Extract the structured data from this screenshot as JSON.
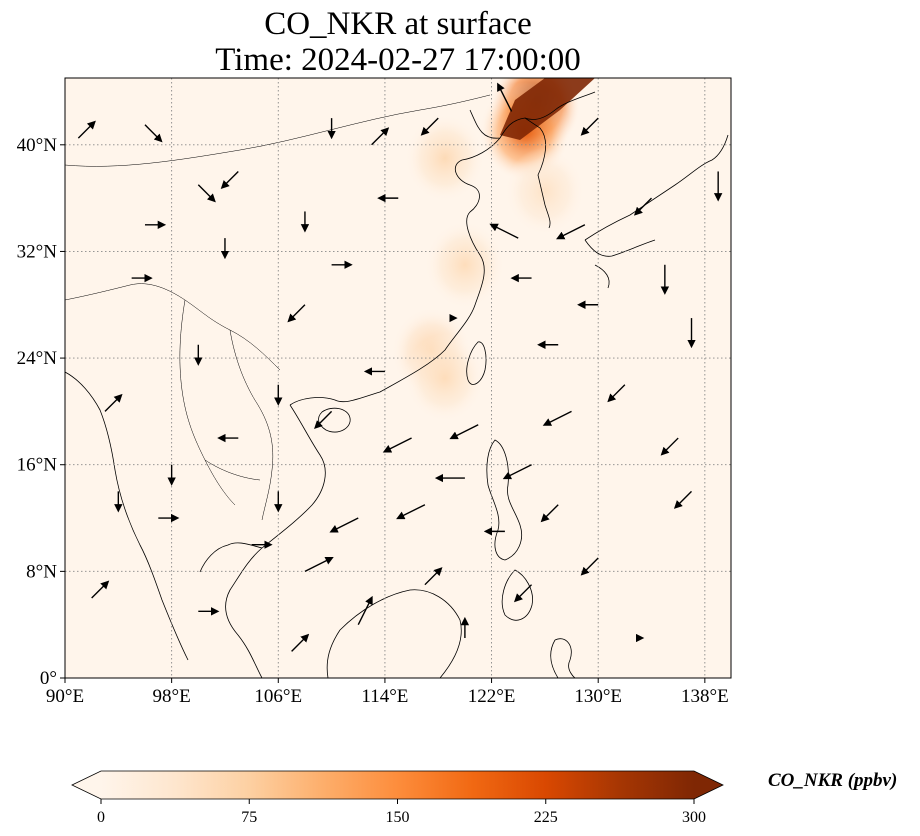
{
  "title_line1": "CO_NKR at surface",
  "title_line2": "Time: 2024-02-27 17:00:00",
  "colorbar": {
    "label": "CO_NKR (ppbv)",
    "ticks": [
      "0",
      "75",
      "150",
      "225",
      "300"
    ],
    "min": 0,
    "max": 300,
    "extend": "both",
    "colormap": [
      "#fff5eb",
      "#fee6ce",
      "#fdd0a2",
      "#fdae6b",
      "#fd8d3c",
      "#f16913",
      "#d94801",
      "#a63603",
      "#7f2704"
    ]
  },
  "map": {
    "lon_range": [
      90,
      140
    ],
    "lat_range": [
      0,
      45
    ],
    "lon_ticks": [
      "90°E",
      "98°E",
      "106°E",
      "114°E",
      "122°E",
      "130°E",
      "138°E"
    ],
    "lat_ticks": [
      "0°",
      "8°N",
      "16°N",
      "24°N",
      "32°N",
      "40°N"
    ],
    "background_color": "#fff5eb",
    "gridlines": "dotted",
    "plumes": [
      {
        "name": "northeast-china-hotspot",
        "lon": 125.3,
        "lat": 43.0,
        "value": 300
      },
      {
        "name": "liaodong",
        "lon": 124.5,
        "lat": 41.0,
        "value": 210
      },
      {
        "name": "north-china-plain",
        "lon": 118.5,
        "lat": 39.0,
        "value": 60
      },
      {
        "name": "korea-yellow-sea",
        "lon": 126.0,
        "lat": 36.5,
        "value": 45
      },
      {
        "name": "yangtze-delta",
        "lon": 120.0,
        "lat": 31.0,
        "value": 55
      },
      {
        "name": "southeast-coast",
        "lon": 117.5,
        "lat": 24.5,
        "value": 70
      },
      {
        "name": "taiwan-strait-outflow",
        "lon": 118.5,
        "lat": 22.5,
        "value": 55
      }
    ],
    "wind_vectors": [
      {
        "lon": 91,
        "lat": 40.5,
        "u": 1,
        "v": 1
      },
      {
        "lon": 96,
        "lat": 41.5,
        "u": 1,
        "v": -1
      },
      {
        "lon": 103,
        "lat": 38,
        "u": -1,
        "v": -1
      },
      {
        "lon": 110,
        "lat": 42,
        "u": 0,
        "v": -1
      },
      {
        "lon": 115,
        "lat": 36,
        "u": -1,
        "v": 0
      },
      {
        "lon": 102,
        "lat": 33,
        "u": 0,
        "v": -1
      },
      {
        "lon": 95,
        "lat": 30,
        "u": 1,
        "v": 0
      },
      {
        "lon": 108,
        "lat": 28,
        "u": -1,
        "v": -1
      },
      {
        "lon": 100,
        "lat": 25,
        "u": 0,
        "v": -1
      },
      {
        "lon": 93,
        "lat": 20,
        "u": 1,
        "v": 1
      },
      {
        "lon": 103,
        "lat": 18,
        "u": -1,
        "v": 0
      },
      {
        "lon": 97,
        "lat": 12,
        "u": 1,
        "v": 0
      },
      {
        "lon": 104,
        "lat": 10,
        "u": 1,
        "v": 0
      },
      {
        "lon": 108,
        "lat": 8,
        "u": 2,
        "v": 1
      },
      {
        "lon": 112,
        "lat": 4,
        "u": 1,
        "v": 2
      },
      {
        "lon": 117,
        "lat": 7,
        "u": 1,
        "v": 1
      },
      {
        "lon": 112,
        "lat": 12,
        "u": -2,
        "v": -1
      },
      {
        "lon": 117,
        "lat": 13,
        "u": -2,
        "v": -1
      },
      {
        "lon": 116,
        "lat": 18,
        "u": -2,
        "v": -1
      },
      {
        "lon": 121,
        "lat": 19,
        "u": -2,
        "v": -1
      },
      {
        "lon": 125,
        "lat": 16,
        "u": -2,
        "v": -1
      },
      {
        "lon": 128,
        "lat": 20,
        "u": -2,
        "v": -1
      },
      {
        "lon": 132,
        "lat": 22,
        "u": -1,
        "v": -1
      },
      {
        "lon": 127,
        "lat": 25,
        "u": -1,
        "v": 0
      },
      {
        "lon": 130,
        "lat": 28,
        "u": -1,
        "v": 0
      },
      {
        "lon": 125,
        "lat": 30,
        "u": -1,
        "v": 0
      },
      {
        "lon": 124,
        "lat": 33,
        "u": -2,
        "v": 1
      },
      {
        "lon": 129,
        "lat": 34,
        "u": -2,
        "v": -1
      },
      {
        "lon": 135,
        "lat": 31,
        "u": 0,
        "v": -2
      },
      {
        "lon": 137,
        "lat": 27,
        "u": 0,
        "v": -2
      },
      {
        "lon": 139,
        "lat": 38,
        "u": 0,
        "v": -2
      },
      {
        "lon": 134,
        "lat": 36,
        "u": -1,
        "v": -1
      },
      {
        "lon": 123.5,
        "lat": 42.5,
        "u": -1,
        "v": 2
      },
      {
        "lon": 130,
        "lat": 42,
        "u": -1,
        "v": -1
      },
      {
        "lon": 118,
        "lat": 42,
        "u": -1,
        "v": -1
      },
      {
        "lon": 108,
        "lat": 35,
        "u": 0,
        "v": -1
      },
      {
        "lon": 96,
        "lat": 34,
        "u": 1,
        "v": 0
      },
      {
        "lon": 119,
        "lat": 27,
        "u": 0,
        "v": 0
      },
      {
        "lon": 114,
        "lat": 23,
        "u": -1,
        "v": 0
      },
      {
        "lon": 110,
        "lat": 20,
        "u": -1,
        "v": -1
      },
      {
        "lon": 120,
        "lat": 15,
        "u": -2,
        "v": 0
      },
      {
        "lon": 123,
        "lat": 11,
        "u": -1,
        "v": 0
      },
      {
        "lon": 127,
        "lat": 13,
        "u": -1,
        "v": -1
      },
      {
        "lon": 130,
        "lat": 9,
        "u": -1,
        "v": -1
      },
      {
        "lon": 125,
        "lat": 7,
        "u": -1,
        "v": -1
      },
      {
        "lon": 136,
        "lat": 18,
        "u": -1,
        "v": -1
      },
      {
        "lon": 137,
        "lat": 14,
        "u": -1,
        "v": -1
      },
      {
        "lon": 100,
        "lat": 5,
        "u": 1,
        "v": 0
      },
      {
        "lon": 92,
        "lat": 6,
        "u": 1,
        "v": 1
      },
      {
        "lon": 107,
        "lat": 2,
        "u": 1,
        "v": 1
      },
      {
        "lon": 120,
        "lat": 3,
        "u": 0,
        "v": 1
      },
      {
        "lon": 133,
        "lat": 3,
        "u": 0,
        "v": 0
      },
      {
        "lon": 98,
        "lat": 16,
        "u": 0,
        "v": -1
      },
      {
        "lon": 106,
        "lat": 14,
        "u": 0,
        "v": -1
      },
      {
        "lon": 94,
        "lat": 14,
        "u": 0,
        "v": -1
      },
      {
        "lon": 100,
        "lat": 37,
        "u": 1,
        "v": -1
      },
      {
        "lon": 113,
        "lat": 40,
        "u": 1,
        "v": 1
      },
      {
        "lon": 110,
        "lat": 31,
        "u": 1,
        "v": 0
      },
      {
        "lon": 106,
        "lat": 22,
        "u": 0,
        "v": -1
      }
    ]
  }
}
